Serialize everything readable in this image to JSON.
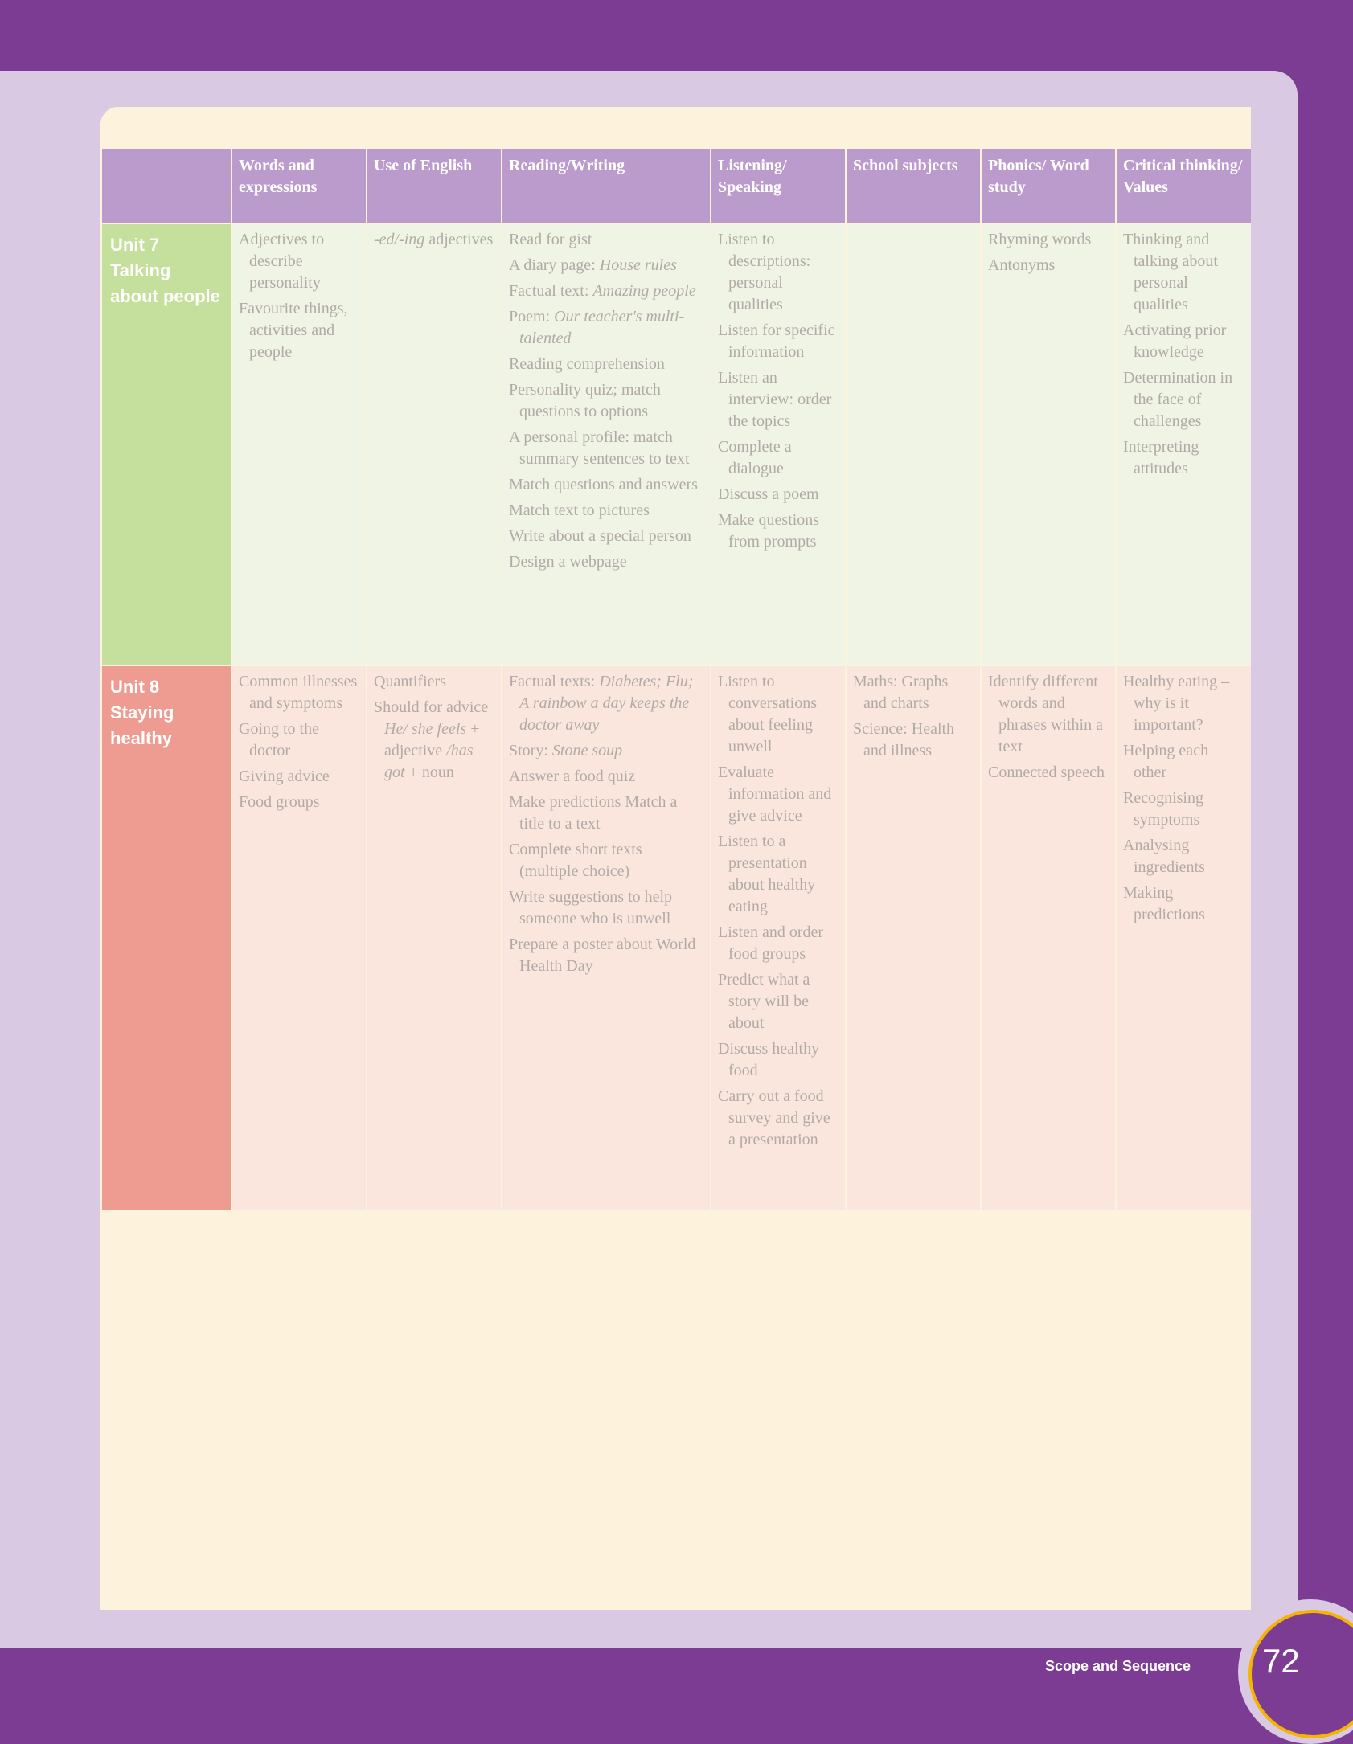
{
  "headers": [
    "",
    "Words and expressions",
    "Use of English",
    "Reading/Writing",
    "Listening/ Speaking",
    "School subjects",
    "Phonics/ Word study",
    "Critical thinking/ Values"
  ],
  "units": [
    {
      "title": "Unit 7 Talking about people",
      "words": [
        "Adjectives to describe personality",
        "Favourite things, activities and people"
      ],
      "english": [
        "-ed/-ing adjectives"
      ],
      "reading": [
        "Read for gist",
        "A diary page: House rules",
        "Factual text: Amazing people",
        "Poem: Our teacher's multi-talented",
        "Reading comprehension",
        "Personality quiz; match questions to options",
        "A personal profile: match summary sentences to text",
        "Match questions and answers",
        "Match text to pictures",
        "Write about a special person",
        "Design a webpage"
      ],
      "listening": [
        "Listen to descriptions: personal qualities",
        "Listen for specific information",
        "Listen an interview: order the topics",
        "Complete a dialogue",
        "Discuss a poem",
        "Make questions from prompts"
      ],
      "subjects": [],
      "phonics": [
        "Rhyming words",
        "Antonyms"
      ],
      "critical": [
        "Thinking and talking about personal qualities",
        "Activating prior knowledge",
        "Determination in the face of challenges",
        "Interpreting attitudes"
      ]
    },
    {
      "title": "Unit 8 Staying healthy",
      "words": [
        "Common illnesses and symptoms",
        "Going to the doctor",
        "Giving advice",
        "Food groups"
      ],
      "english": [
        "Quantifiers",
        "Should for advice He/ she feels + adjective /has got + noun"
      ],
      "reading": [
        "Factual texts: Diabetes; Flu; A rainbow a day keeps the doctor away",
        "Story: Stone soup",
        "Answer a food quiz",
        "Make predictions Match a title to a text",
        "Complete short texts (multiple choice)",
        "Write suggestions to help someone who is unwell",
        "Prepare a poster about World Health Day"
      ],
      "listening": [
        "Listen to conversations about feeling unwell",
        "Evaluate information and give advice",
        "Listen to a presentation about healthy eating",
        "Listen and order food groups",
        "Predict what a story will be about",
        "Discuss healthy food",
        "Carry out a food survey and give a presentation"
      ],
      "subjects": [
        "Maths: Graphs and charts",
        "Science: Health and illness"
      ],
      "phonics": [
        "Identify different words and phrases within a text",
        "Connected speech"
      ],
      "critical": [
        "Healthy eating – why is it important?",
        "Helping each other",
        "Recognising symptoms",
        "Analysing ingredients",
        "Making predictions"
      ]
    }
  ],
  "footer": {
    "label": "Scope and Sequence",
    "page": "72"
  }
}
